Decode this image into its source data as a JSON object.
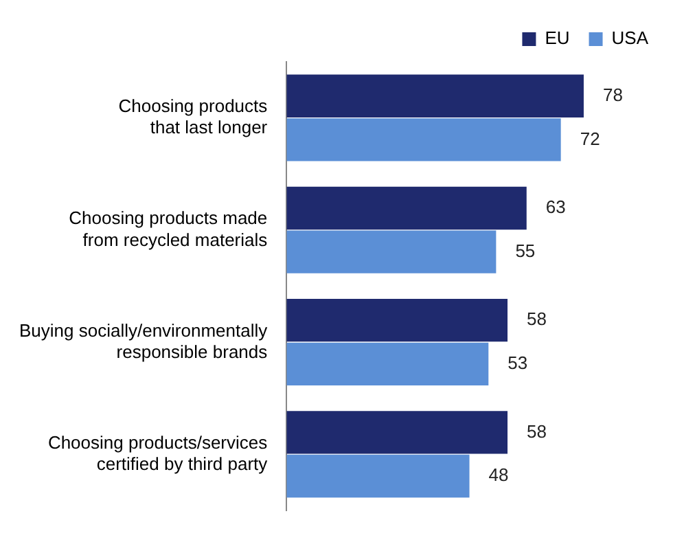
{
  "chart_data": {
    "type": "bar",
    "orientation": "horizontal",
    "categories": [
      "Choosing products\nthat last longer",
      "Choosing products made\nfrom recycled materials",
      "Buying socially/environmentally\nresponsible brands",
      "Choosing products/services\ncertified by third party"
    ],
    "series": [
      {
        "name": "EU",
        "color": "#1f2a6e",
        "values": [
          78,
          63,
          58,
          58
        ]
      },
      {
        "name": "USA",
        "color": "#5b8fd6",
        "values": [
          72,
          55,
          53,
          48
        ]
      }
    ],
    "data_labels": true,
    "legend": "top right",
    "grid": false
  }
}
